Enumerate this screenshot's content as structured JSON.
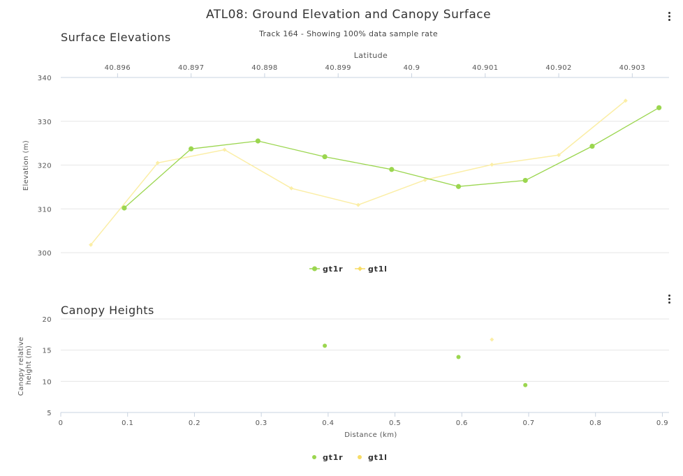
{
  "title": "ATL08: Ground Elevation and Canopy Surface",
  "subtitle": "Track 164 - Showing 100% data sample rate",
  "colors": {
    "gt1r": "#9bd64f",
    "gt1l": "#f7dc66",
    "gt1l_line": "#fbeea6",
    "grid": "#e6e6e6",
    "text": "#333333"
  },
  "chart_data": [
    {
      "type": "line",
      "title": "Surface Elevations",
      "xlabel": "",
      "ylabel": "Elevation (m)",
      "ylim": [
        300,
        340
      ],
      "yticks": [
        300,
        310,
        320,
        330,
        340
      ],
      "xlim": [
        0,
        0.91
      ],
      "top_axis": {
        "label": "Latitude",
        "ticks": [
          "40.896",
          "40.897",
          "40.898",
          "40.899",
          "40.9",
          "40.901",
          "40.902",
          "40.903"
        ],
        "tick_x_km": [
          0.085,
          0.195,
          0.305,
          0.415,
          0.525,
          0.635,
          0.745,
          0.855
        ]
      },
      "legend": "bottom-center",
      "series": [
        {
          "name": "gt1r",
          "x": [
            0.095,
            0.195,
            0.295,
            0.395,
            0.495,
            0.595,
            0.695,
            0.795,
            0.895
          ],
          "y": [
            310.2,
            323.7,
            325.5,
            321.9,
            319.0,
            315.1,
            316.5,
            324.3,
            333.1
          ]
        },
        {
          "name": "gt1l",
          "x": [
            0.045,
            0.145,
            0.245,
            0.345,
            0.445,
            0.545,
            0.645,
            0.745,
            0.845
          ],
          "y": [
            301.8,
            320.5,
            323.5,
            314.7,
            310.9,
            316.6,
            320.1,
            322.3,
            334.7
          ]
        }
      ]
    },
    {
      "type": "scatter",
      "title": "Canopy Heights",
      "xlabel": "Distance (km)",
      "ylabel": "Canopy relative height (m)",
      "ylim": [
        5,
        20
      ],
      "yticks": [
        5,
        10,
        15,
        20
      ],
      "xlim": [
        0,
        0.91
      ],
      "xticks": [
        0,
        0.1,
        0.2,
        0.3,
        0.4,
        0.5,
        0.6,
        0.7,
        0.8,
        0.9
      ],
      "legend": "bottom-center",
      "series": [
        {
          "name": "gt1r",
          "x": [
            0.395,
            0.595,
            0.695
          ],
          "y": [
            15.7,
            13.9,
            9.4
          ]
        },
        {
          "name": "gt1l",
          "x": [
            0.645
          ],
          "y": [
            16.7
          ]
        }
      ]
    }
  ]
}
